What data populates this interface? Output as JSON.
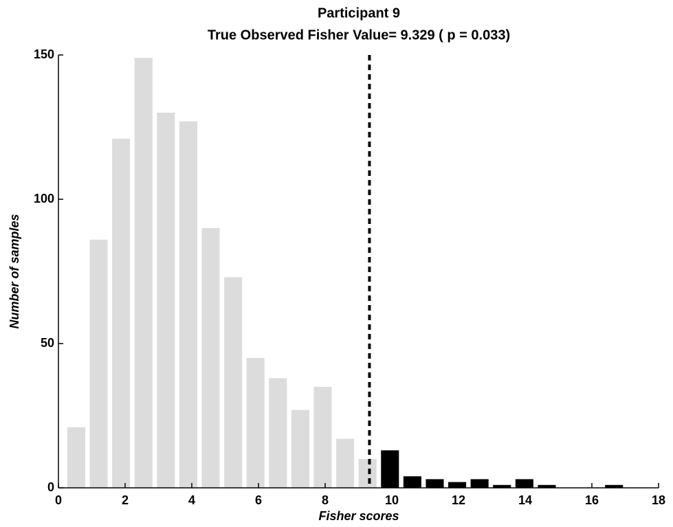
{
  "chart_data": {
    "type": "histogram",
    "title": [
      "Participant 9",
      "True Observed Fisher Value= 9.329 ( p = 0.033)"
    ],
    "xlabel": "Fisher scores",
    "ylabel": "Number of samples",
    "bins": [
      0.2,
      0.872,
      1.544,
      2.216,
      2.888,
      3.56,
      4.232,
      4.904,
      5.576,
      6.248,
      6.92,
      7.592,
      8.264,
      8.936,
      9.608,
      10.28,
      10.952,
      11.624,
      12.296,
      12.968,
      13.64,
      14.312,
      14.984,
      15.656,
      16.328,
      17.0
    ],
    "counts": [
      21,
      86,
      121,
      149,
      130,
      127,
      90,
      73,
      45,
      38,
      27,
      35,
      17,
      10,
      13,
      4,
      3,
      2,
      3,
      1,
      3,
      1,
      0,
      0,
      1
    ],
    "color": "#dcdcdc",
    "highlight_color": "#000000",
    "reference_line": 9.329,
    "xlim": [
      0,
      18
    ],
    "xticks": [
      0,
      2,
      4,
      6,
      8,
      10,
      12,
      14,
      16,
      18
    ],
    "ylim": [
      0,
      150
    ],
    "yticks": [
      0,
      50,
      100,
      150
    ]
  }
}
